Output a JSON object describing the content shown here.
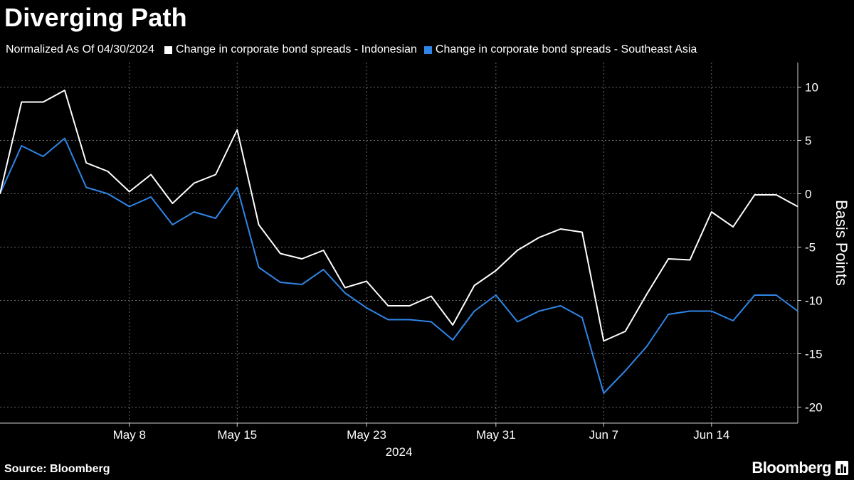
{
  "title": "Diverging Path",
  "legend": {
    "note": "Normalized As Of 04/30/2024",
    "items": [
      {
        "label": "Change in corporate bond spreads - Indonesian",
        "color": "#ffffff"
      },
      {
        "label": "Change in corporate bond spreads - Southeast Asia",
        "color": "#2f86e8"
      }
    ]
  },
  "footer": {
    "source": "Source: Bloomberg",
    "brand": "Bloomberg",
    "brand_icon": "bloomberg-chart-icon"
  },
  "chart_data": {
    "type": "line",
    "title": "Diverging Path",
    "subtitle": "Normalized As Of 04/30/2024",
    "ylabel": "Basis Points",
    "xlabel": "2024",
    "ylim": [
      -21.5,
      12.3
    ],
    "yticks": [
      10,
      5,
      0,
      -5,
      -10,
      -15,
      -20
    ],
    "ytick_labels": [
      "10",
      "5",
      "0",
      "-5",
      "-10",
      "-15",
      "-20"
    ],
    "grid": true,
    "y_axis_side": "right",
    "x": [
      "Apr 30",
      "May 1",
      "May 2",
      "May 3",
      "May 6",
      "May 7",
      "May 8",
      "May 9",
      "May 10",
      "May 13",
      "May 14",
      "May 15",
      "May 16",
      "May 17",
      "May 20",
      "May 21",
      "May 22",
      "May 23",
      "May 24",
      "May 27",
      "May 28",
      "May 29",
      "May 30",
      "May 31",
      "Jun 3",
      "Jun 4",
      "Jun 5",
      "Jun 6",
      "Jun 7",
      "Jun 10",
      "Jun 11",
      "Jun 12",
      "Jun 13",
      "Jun 14",
      "Jun 17",
      "Jun 18",
      "Jun 19",
      "Jun 20"
    ],
    "xtick_labels": [
      "May 8",
      "May 15",
      "May 23",
      "May 31",
      "Jun 7",
      "Jun 14"
    ],
    "xtick_indices": [
      6,
      11,
      17,
      23,
      28,
      33
    ],
    "year_label": "2024",
    "series": [
      {
        "name": "Change in corporate bond spreads - Indonesian",
        "color": "#ffffff",
        "values": [
          0,
          8.6,
          8.6,
          9.7,
          2.9,
          2.1,
          0.2,
          1.8,
          -0.9,
          1.0,
          1.8,
          6.0,
          -2.9,
          -5.6,
          -6.1,
          -5.3,
          -8.8,
          -8.2,
          -10.5,
          -10.5,
          -9.6,
          -12.3,
          -8.6,
          -7.2,
          -5.3,
          -4.1,
          -3.3,
          -3.6,
          -13.8,
          -12.9,
          -9.4,
          -6.1,
          -6.2,
          -1.7,
          -3.1,
          -0.1,
          -0.1,
          -1.2
        ]
      },
      {
        "name": "Change in corporate bond spreads - Southeast Asia",
        "color": "#2f86e8",
        "values": [
          0,
          4.5,
          3.5,
          5.2,
          0.6,
          0.0,
          -1.2,
          -0.3,
          -2.9,
          -1.7,
          -2.3,
          0.6,
          -6.9,
          -8.3,
          -8.5,
          -7.1,
          -9.3,
          -10.7,
          -11.8,
          -11.8,
          -12.0,
          -13.7,
          -11.0,
          -9.5,
          -12.0,
          -11.0,
          -10.5,
          -11.6,
          -18.7,
          -16.6,
          -14.3,
          -11.3,
          -11.0,
          -11.0,
          -11.9,
          -9.5,
          -9.5,
          -11.0
        ]
      }
    ]
  }
}
